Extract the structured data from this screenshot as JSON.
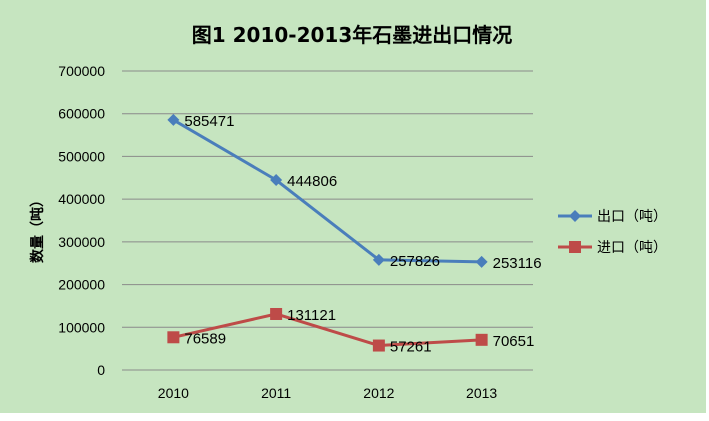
{
  "chart_data": {
    "type": "line",
    "title": "图1  2010-2013年石墨进出口情况",
    "xlabel": "",
    "ylabel": "数量（吨）",
    "categories": [
      "2010",
      "2011",
      "2012",
      "2013"
    ],
    "ylim": [
      0,
      700000
    ],
    "yticks": [
      "0",
      "100000",
      "200000",
      "300000",
      "400000",
      "500000",
      "600000",
      "700000"
    ],
    "grid": true,
    "legend_position": "right",
    "series": [
      {
        "name": "出口（吨）",
        "values": [
          585471,
          444806,
          257826,
          253116
        ],
        "labels": [
          "585471",
          "444806",
          "257826",
          "253116"
        ],
        "color": "#4a7ebb",
        "marker": "diamond"
      },
      {
        "name": "进口（吨）",
        "values": [
          76589,
          131121,
          57261,
          70651
        ],
        "labels": [
          "76589",
          "131121",
          "57261",
          "70651"
        ],
        "color": "#be4b48",
        "marker": "square"
      }
    ],
    "background_color": "#c6e5c0",
    "gridline_color": "#8a8a8a"
  }
}
